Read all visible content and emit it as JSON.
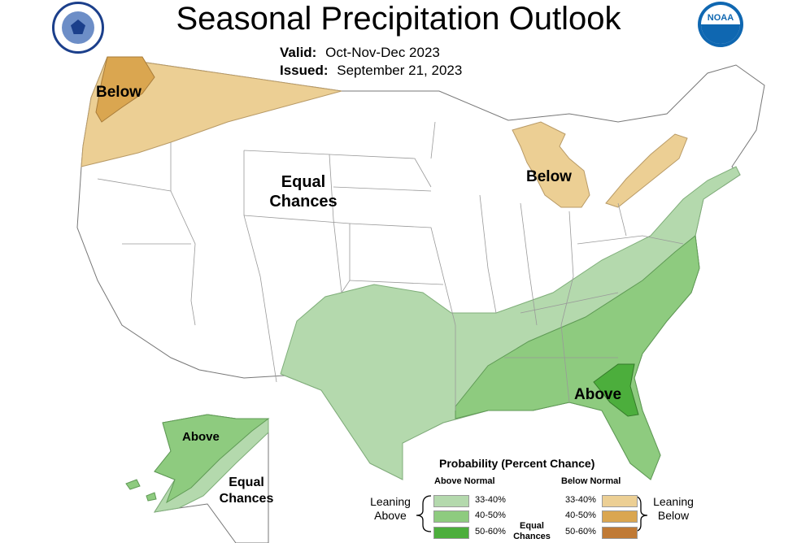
{
  "header": {
    "title": "Seasonal Precipitation Outlook",
    "valid_label": "Valid:",
    "valid_value": "Oct-Nov-Dec 2023",
    "issued_label": "Issued:",
    "issued_value": "September 21, 2023"
  },
  "logos": {
    "left": "commerce-seal",
    "right": "noaa-logo",
    "noaa_text": "NOAA"
  },
  "map_labels": {
    "northwest": "Below",
    "great_lakes": "Below",
    "central_line1": "Equal",
    "central_line2": "Chances",
    "southeast": "Above",
    "alaska_above": "Above",
    "alaska_ec_line1": "Equal",
    "alaska_ec_line2": "Chances"
  },
  "legend": {
    "title": "Probability (Percent Chance)",
    "above_header": "Above Normal",
    "below_header": "Below Normal",
    "leaning_above_line1": "Leaning",
    "leaning_above_line2": "Above",
    "leaning_below_line1": "Leaning",
    "leaning_below_line2": "Below",
    "ec_line1": "Equal",
    "ec_line2": "Chances",
    "above": [
      {
        "range": "33-40%",
        "color": "#b4d9ad"
      },
      {
        "range": "40-50%",
        "color": "#8ecb7f"
      },
      {
        "range": "50-60%",
        "color": "#4cae3c"
      }
    ],
    "below": [
      {
        "range": "33-40%",
        "color": "#eccf94"
      },
      {
        "range": "40-50%",
        "color": "#daa650"
      },
      {
        "range": "50-60%",
        "color": "#c07a35"
      }
    ]
  }
}
